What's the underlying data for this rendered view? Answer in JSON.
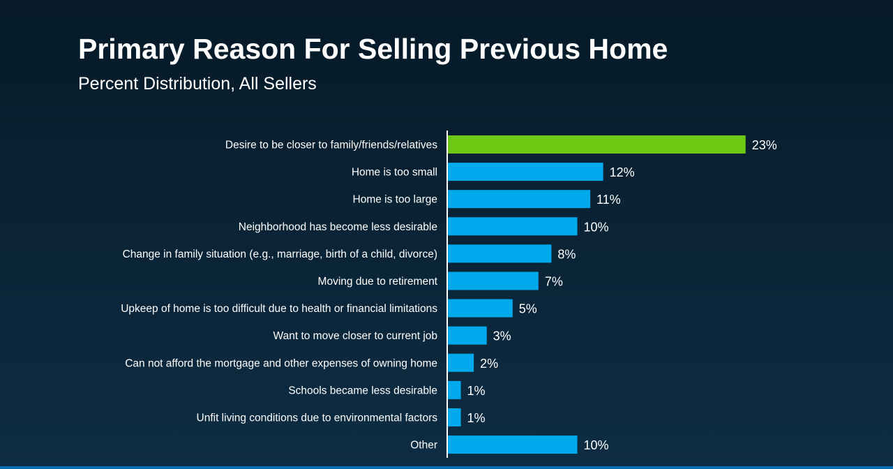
{
  "title": "Primary Reason For Selling Previous Home",
  "subtitle": "Percent Distribution, All Sellers",
  "colors": {
    "background": "#061a27",
    "bar": "#00a8ec",
    "highlight_bar": "#6cc813",
    "axis": "#ffffff",
    "text": "#ffffff"
  },
  "chart_data": {
    "type": "bar",
    "orientation": "horizontal",
    "title": "Primary Reason For Selling Previous Home",
    "subtitle": "Percent Distribution, All Sellers",
    "xlabel": "",
    "ylabel": "",
    "xlim": [
      0,
      23
    ],
    "grid": false,
    "legend": "none",
    "highlight_index": 0,
    "categories": [
      "Desire to be closer to family/friends/relatives",
      "Home is too small",
      "Home is too large",
      "Neighborhood has become less desirable",
      "Change in family situation (e.g., marriage, birth of a child, divorce)",
      "Moving due to retirement",
      "Upkeep of home is too difficult due to health or financial limitations",
      "Want to move closer to current job",
      "Can not afford the mortgage and other expenses of owning home",
      "Schools became less desirable",
      "Unfit living conditions due to environmental factors",
      "Other"
    ],
    "values": [
      23,
      12,
      11,
      10,
      8,
      7,
      5,
      3,
      2,
      1,
      1,
      10
    ],
    "value_labels": [
      "23%",
      "12%",
      "11%",
      "10%",
      "8%",
      "7%",
      "5%",
      "3%",
      "2%",
      "1%",
      "1%",
      "10%"
    ]
  }
}
